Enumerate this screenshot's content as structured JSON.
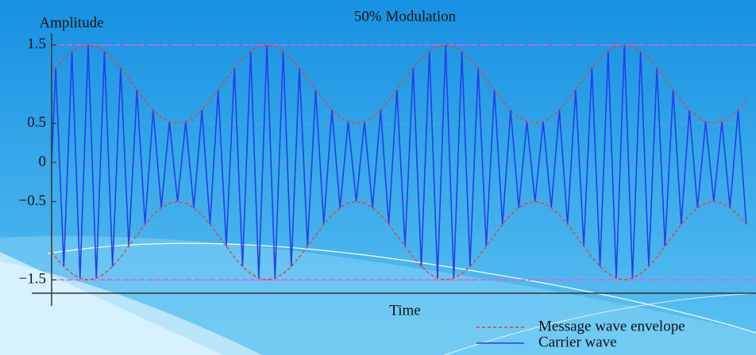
{
  "chart_data": {
    "type": "line",
    "title": "50% Modulation",
    "ylabel": "Amplitude",
    "xlabel": "Time",
    "xlim": [
      0,
      86.7
    ],
    "ylim": [
      -1.67,
      1.62
    ],
    "yticks": [
      1.5,
      0.5,
      0,
      {
        "value": -0.5,
        "label": "−0.5"
      },
      {
        "value": -1.5,
        "label": "−1.5"
      }
    ],
    "grid": true,
    "hlines": [
      1.5,
      -1.5
    ],
    "hline_color": "#f050f0",
    "legend": "lower right",
    "x": [
      0,
      0.5,
      1.5,
      2.5,
      3.5,
      4.5,
      5.5,
      6.5,
      7.5,
      8.5,
      9.5,
      10.5,
      11.5,
      12.5,
      13.5,
      14.5,
      15.5,
      16.5,
      17.5,
      18.5,
      19.5,
      20.5,
      21.5,
      22.5,
      23.5,
      24.5,
      25.5,
      26.5,
      27.5,
      28.5,
      29.5,
      30.5,
      31.5,
      32.5,
      33.5,
      34.5,
      35.5,
      36.5,
      37.5,
      38.5,
      39.5,
      40.5,
      41.5,
      42.5,
      43.5,
      44.5,
      45.5,
      46.5,
      47.5,
      48.5,
      49.5,
      50.5,
      51.5,
      52.5,
      53.5,
      54.5,
      55.5,
      56.5,
      57.5,
      58.5,
      59.5,
      60.5,
      61.5,
      62.5,
      63.5,
      64.5,
      65.5,
      66.5,
      67.5,
      68.5,
      69.5,
      70.5,
      71.5,
      72.5,
      73.5,
      74.5,
      75.5,
      76.5,
      77.5,
      78.5,
      79.5,
      80.5,
      81.5,
      82.5,
      83.5,
      84.5,
      85.5
    ],
    "series": [
      {
        "name": "Message wave envelope",
        "color": "#e8403a",
        "dashed": true,
        "values": [
          1.14,
          1.21,
          1.33,
          1.42,
          1.48,
          1.5,
          1.48,
          1.42,
          1.33,
          1.21,
          1.07,
          0.93,
          0.79,
          0.67,
          0.58,
          0.52,
          0.5,
          0.52,
          0.58,
          0.67,
          0.79,
          0.93,
          1.07,
          1.21,
          1.33,
          1.42,
          1.48,
          1.5,
          1.48,
          1.42,
          1.33,
          1.21,
          1.07,
          0.93,
          0.79,
          0.67,
          0.58,
          0.52,
          0.5,
          0.52,
          0.58,
          0.67,
          0.79,
          0.93,
          1.07,
          1.21,
          1.33,
          1.42,
          1.48,
          1.5,
          1.48,
          1.42,
          1.33,
          1.21,
          1.07,
          0.93,
          0.79,
          0.67,
          0.58,
          0.52,
          0.5,
          0.52,
          0.58,
          0.67,
          0.79,
          0.93,
          1.07,
          1.21,
          1.33,
          1.42,
          1.48,
          1.5,
          1.48,
          1.42,
          1.33,
          1.21,
          1.07,
          0.93,
          0.79,
          0.67,
          0.58,
          0.52,
          0.5,
          0.52,
          0.58,
          0.67,
          0.79
        ],
        "lower": [
          -1.14,
          -1.21,
          -1.33,
          -1.42,
          -1.48,
          -1.5,
          -1.48,
          -1.42,
          -1.33,
          -1.21,
          -1.07,
          -0.93,
          -0.79,
          -0.67,
          -0.58,
          -0.52,
          -0.5,
          -0.52,
          -0.58,
          -0.67,
          -0.79,
          -0.93,
          -1.07,
          -1.21,
          -1.33,
          -1.42,
          -1.48,
          -1.5,
          -1.48,
          -1.42,
          -1.33,
          -1.21,
          -1.07,
          -0.93,
          -0.79,
          -0.67,
          -0.58,
          -0.52,
          -0.5,
          -0.52,
          -0.58,
          -0.67,
          -0.79,
          -0.93,
          -1.07,
          -1.21,
          -1.33,
          -1.42,
          -1.48,
          -1.5,
          -1.48,
          -1.42,
          -1.33,
          -1.21,
          -1.07,
          -0.93,
          -0.79,
          -0.67,
          -0.58,
          -0.52,
          -0.5,
          -0.52,
          -0.58,
          -0.67,
          -0.79,
          -0.93,
          -1.07,
          -1.21,
          -1.33,
          -1.42,
          -1.48,
          -1.5,
          -1.48,
          -1.42,
          -1.33,
          -1.21,
          -1.07,
          -0.93,
          -0.79,
          -0.67,
          -0.58,
          -0.52,
          -0.5,
          -0.52,
          -0.58,
          -0.67,
          -0.79
        ]
      },
      {
        "name": "Carrier wave",
        "color": "#2440e8",
        "dashed": false,
        "values": [
          0,
          1.21,
          -1.33,
          1.42,
          -1.48,
          1.5,
          -1.48,
          1.42,
          -1.33,
          1.21,
          -1.07,
          0.93,
          -0.79,
          0.67,
          -0.58,
          0.52,
          -0.5,
          0.52,
          -0.58,
          0.67,
          -0.79,
          0.93,
          -1.07,
          1.21,
          -1.33,
          1.42,
          -1.48,
          1.5,
          -1.48,
          1.42,
          -1.33,
          1.21,
          -1.07,
          0.93,
          -0.79,
          0.67,
          -0.58,
          0.52,
          -0.5,
          0.52,
          -0.58,
          0.67,
          -0.79,
          0.93,
          -1.07,
          1.21,
          -1.33,
          1.42,
          -1.48,
          1.5,
          -1.48,
          1.42,
          -1.33,
          1.21,
          -1.07,
          0.93,
          -0.79,
          0.67,
          -0.58,
          0.52,
          -0.5,
          0.52,
          -0.58,
          0.67,
          -0.79,
          0.93,
          -1.07,
          1.21,
          -1.33,
          1.42,
          -1.48,
          1.5,
          -1.48,
          1.42,
          -1.33,
          1.21,
          -1.07,
          0.93,
          -0.79,
          0.67,
          -0.58,
          0.52,
          -0.5,
          0.52,
          -0.58,
          0.67,
          -0.79
        ]
      }
    ]
  }
}
